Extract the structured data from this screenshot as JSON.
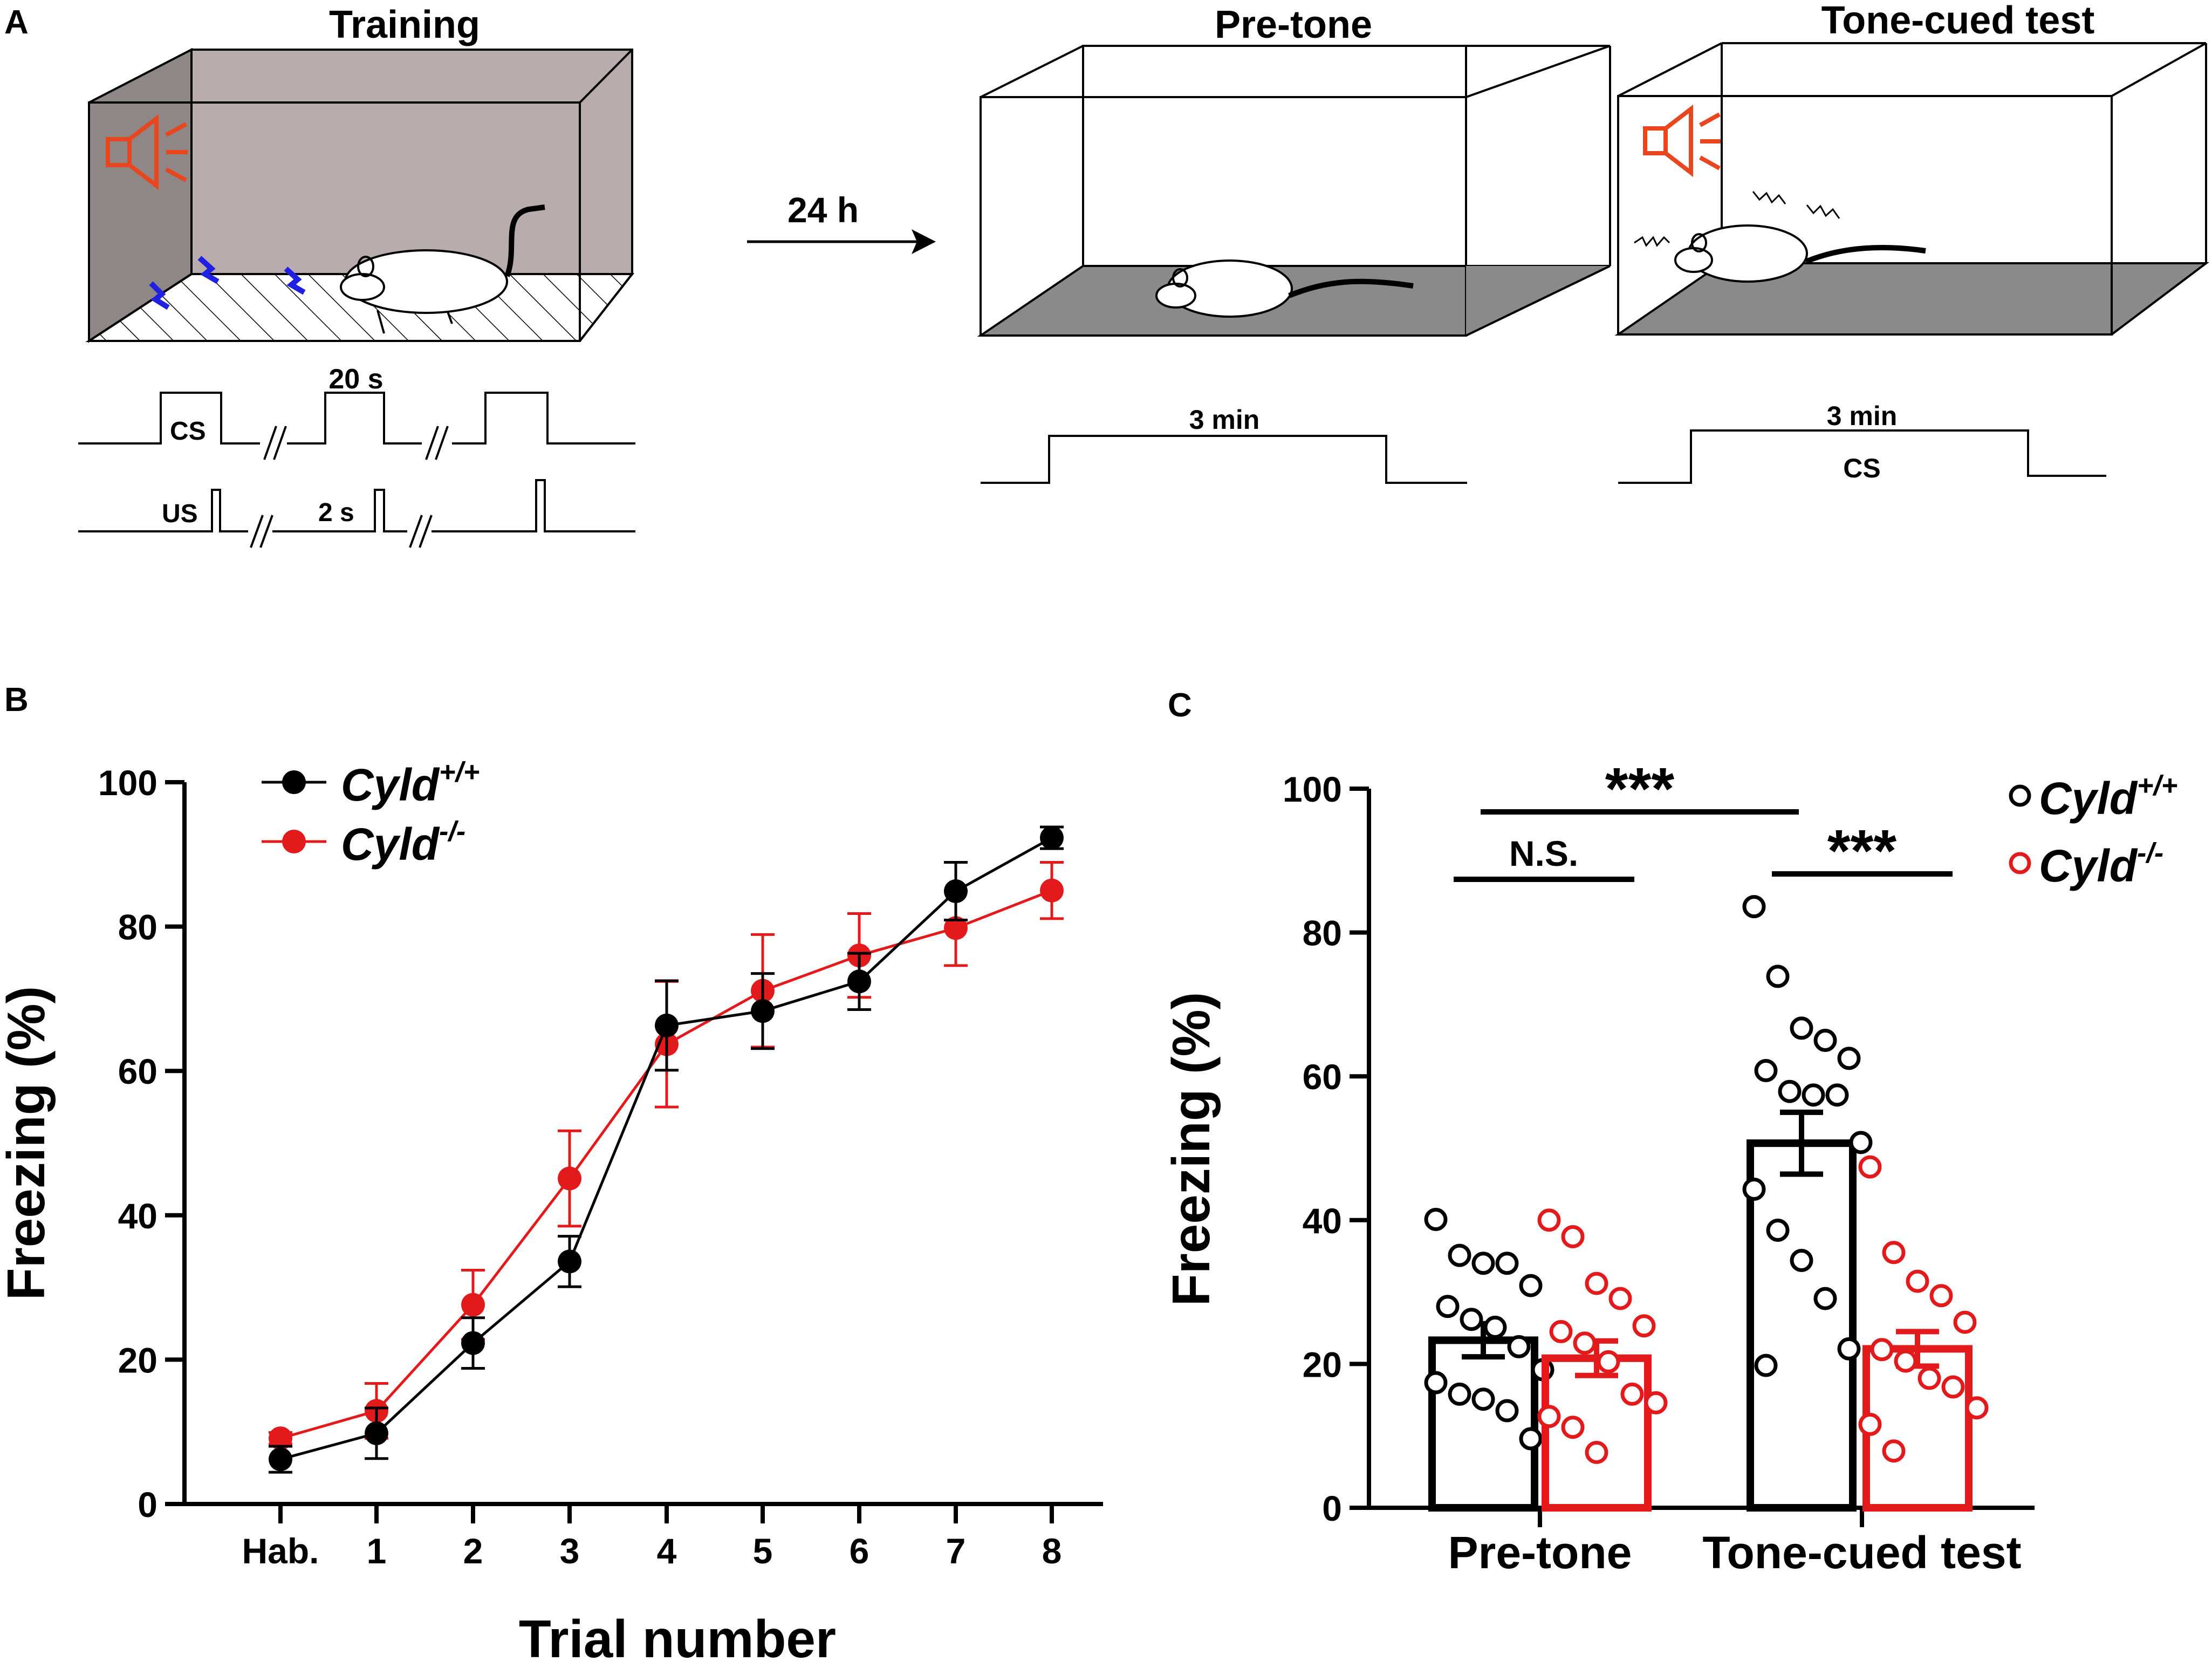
{
  "panel_labels": {
    "a": "A",
    "b": "B",
    "c": "C"
  },
  "panel_a": {
    "training": {
      "title": "Training",
      "cs_label": "CS",
      "us_label": "US",
      "cs_duration": "20 s",
      "us_duration": "2 s"
    },
    "arrow_label": "24 h",
    "pretone": {
      "title": "Pre-tone",
      "duration": "3 min"
    },
    "tonecued": {
      "title": "Tone-cued test",
      "duration": "3 min",
      "cs_label": "CS"
    },
    "colors": {
      "speaker": "#e8461e",
      "shock": "#2020e0",
      "box_fill": "#b8acac",
      "floor_fill": "#8a8a8a"
    }
  },
  "chart_data": [
    {
      "panel": "B",
      "type": "line",
      "xlabel": "Trial number",
      "ylabel": "Freezing (%)",
      "ylim": [
        0,
        100
      ],
      "yticks": [
        "0",
        "20",
        "40",
        "60",
        "80",
        "100"
      ],
      "categories": [
        "Hab.",
        "1",
        "2",
        "3",
        "4",
        "5",
        "6",
        "7",
        "8"
      ],
      "series": [
        {
          "name": "Cyld",
          "sup": "+/+",
          "color": "#000000",
          "values": [
            6.2,
            9.8,
            22.3,
            33.6,
            66.3,
            68.3,
            72.4,
            84.9,
            92.3
          ],
          "errors": [
            1.8,
            3.5,
            3.5,
            3.5,
            6.2,
            5.2,
            3.9,
            4.0,
            1.5
          ]
        },
        {
          "name": "Cyld",
          "sup": "-/-",
          "color": "#e31a1c",
          "values": [
            9.1,
            12.9,
            27.6,
            45.1,
            63.7,
            71.1,
            76.0,
            79.8,
            85.0
          ],
          "errors": [
            0.8,
            3.8,
            4.8,
            6.6,
            8.7,
            7.8,
            5.8,
            5.2,
            3.9
          ]
        }
      ]
    },
    {
      "panel": "C",
      "type": "bar",
      "ylabel": "Freezing (%)",
      "ylim": [
        0,
        100
      ],
      "yticks": [
        "0",
        "20",
        "40",
        "60",
        "80",
        "100"
      ],
      "groups": [
        "Pre-tone",
        "Tone-cued test"
      ],
      "series": [
        {
          "name": "Cyld",
          "sup": "+/+",
          "color": "#000000",
          "means": [
            23.3,
            50.7
          ],
          "sems": [
            2.3,
            4.3
          ],
          "points": [
            [
              40.1,
              35.1,
              34.0,
              34.0,
              30.9,
              28.0,
              26.2,
              25.1,
              22.4,
              19.2,
              17.4,
              15.8,
              15.1,
              13.5,
              9.6
            ],
            [
              83.6,
              73.9,
              66.7,
              65.0,
              62.5,
              60.8,
              57.9,
              57.4,
              57.4,
              50.8,
              44.3,
              38.6,
              34.4,
              29.1,
              22.1,
              19.8
            ]
          ]
        },
        {
          "name": "Cyld",
          "sup": "-/-",
          "color": "#e31a1c",
          "means": [
            20.8,
            22.1
          ],
          "sems": [
            2.4,
            2.4
          ],
          "points": [
            [
              40.0,
              37.7,
              31.2,
              29.1,
              25.3,
              24.5,
              22.9,
              20.3,
              15.8,
              14.6,
              12.7,
              11.2,
              7.7
            ],
            [
              47.4,
              35.5,
              31.5,
              29.5,
              25.8,
              22.0,
              20.4,
              18.0,
              16.8,
              13.9,
              11.6,
              7.9
            ]
          ]
        }
      ],
      "significance": [
        {
          "label": "N.S."
        },
        {
          "label": "***"
        },
        {
          "label": "***"
        }
      ]
    }
  ]
}
